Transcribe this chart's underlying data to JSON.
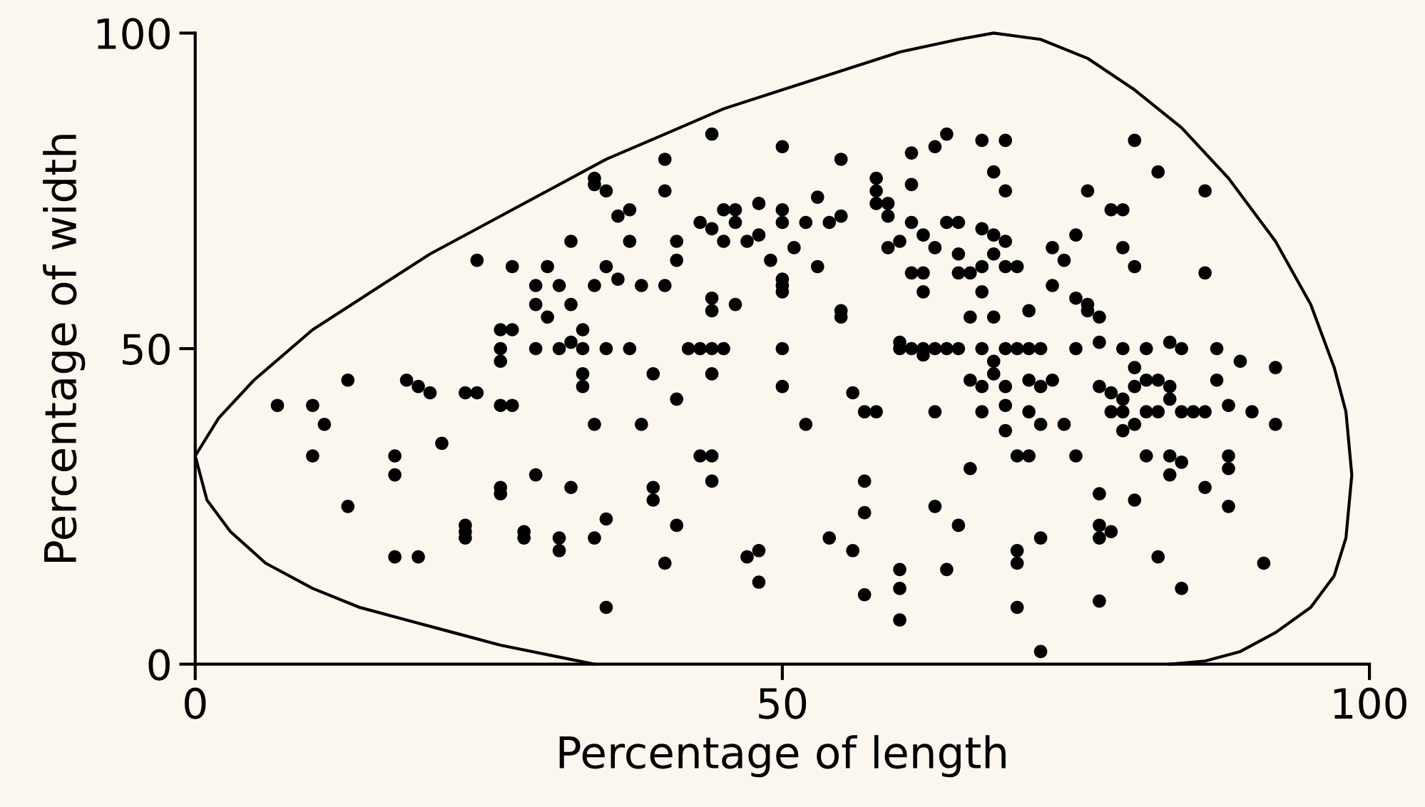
{
  "chart_data": {
    "type": "scatter",
    "xlabel": "Percentage of length",
    "ylabel": "Percentage of width",
    "xlim": [
      0,
      100
    ],
    "ylim": [
      0,
      100
    ],
    "xticks": [
      0,
      50,
      100
    ],
    "yticks": [
      0,
      50,
      100
    ],
    "grid": false,
    "legend": false,
    "series": [
      {
        "color": "#000000",
        "marker": "circle",
        "x": [
          7,
          10,
          10,
          11,
          13,
          13,
          17,
          17,
          17,
          18,
          19,
          19,
          20,
          21,
          23,
          23,
          23,
          24,
          23,
          24,
          26,
          26,
          26,
          26,
          26,
          26,
          27,
          27,
          27,
          28,
          28,
          29,
          29,
          29,
          29,
          30,
          30,
          31,
          31,
          31,
          31,
          32,
          32,
          32,
          32,
          33,
          33,
          33,
          33,
          34,
          34,
          34,
          34,
          34,
          35,
          35,
          35,
          35,
          35,
          36,
          36,
          37,
          37,
          37,
          38,
          38,
          39,
          39,
          39,
          40,
          40,
          40,
          40,
          41,
          41,
          41,
          41,
          42,
          43,
          43,
          43,
          44,
          44,
          44,
          44,
          44,
          44,
          44,
          44,
          45,
          45,
          45,
          46,
          46,
          46,
          47,
          47,
          48,
          48,
          48,
          48,
          49,
          50,
          50,
          50,
          50,
          50,
          50,
          50,
          50,
          51,
          52,
          52,
          53,
          53,
          54,
          54,
          55,
          55,
          55,
          55,
          56,
          56,
          57,
          57,
          57,
          57,
          58,
          58,
          58,
          58,
          59,
          59,
          59,
          60,
          60,
          60,
          60,
          60,
          60,
          61,
          61,
          61,
          61,
          61,
          62,
          62,
          62,
          62,
          62,
          63,
          63,
          63,
          63,
          63,
          64,
          64,
          64,
          64,
          65,
          65,
          65,
          65,
          65,
          66,
          66,
          66,
          66,
          67,
          67,
          67,
          67,
          67,
          67,
          67,
          68,
          68,
          68,
          68,
          68,
          68,
          69,
          69,
          69,
          69,
          69,
          69,
          69,
          69,
          70,
          70,
          70,
          70,
          70,
          70,
          71,
          71,
          71,
          71,
          71,
          72,
          72,
          72,
          72,
          72,
          73,
          73,
          73,
          74,
          74,
          75,
          75,
          75,
          75,
          76,
          76,
          76,
          77,
          77,
          77,
          77,
          77,
          77,
          77,
          78,
          78,
          78,
          78,
          79,
          79,
          79,
          79,
          79,
          79,
          80,
          80,
          80,
          80,
          80,
          80,
          81,
          81,
          81,
          81,
          82,
          82,
          82,
          82,
          83,
          83,
          83,
          83,
          83,
          84,
          84,
          84,
          84,
          85,
          86,
          86,
          86,
          86,
          87,
          87,
          88,
          88,
          88,
          88,
          89,
          90,
          91,
          92,
          92
        ],
        "values": [
          41,
          41,
          33,
          38,
          45,
          25,
          30,
          33,
          17,
          45,
          44,
          17,
          43,
          35,
          43,
          22,
          21,
          43,
          20,
          64,
          53,
          50,
          48,
          41,
          28,
          27,
          63,
          53,
          41,
          21,
          20,
          60,
          57,
          50,
          30,
          63,
          55,
          60,
          50,
          20,
          18,
          67,
          57,
          51,
          28,
          53,
          50,
          46,
          44,
          77,
          76,
          60,
          38,
          20,
          75,
          63,
          50,
          23,
          9,
          71,
          61,
          72,
          67,
          50,
          38,
          60,
          26,
          28,
          46,
          16,
          60,
          75,
          80,
          64,
          67,
          42,
          22,
          50,
          70,
          50,
          33,
          33,
          50,
          84,
          69,
          58,
          56,
          46,
          29,
          72,
          67,
          50,
          70,
          57,
          72,
          67,
          17,
          73,
          68,
          13,
          18,
          64,
          82,
          72,
          70,
          61,
          60,
          59,
          50,
          44,
          66,
          70,
          38,
          63,
          74,
          70,
          20,
          56,
          55,
          80,
          71,
          43,
          18,
          11,
          40,
          24,
          29,
          77,
          75,
          73,
          40,
          71,
          66,
          73,
          50,
          51,
          15,
          7,
          12,
          67,
          70,
          76,
          62,
          50,
          81,
          50,
          62,
          68,
          59,
          49,
          82,
          66,
          50,
          40,
          25,
          84,
          70,
          50,
          15,
          70,
          65,
          62,
          50,
          22,
          55,
          45,
          31,
          62,
          83,
          69,
          63,
          59,
          50,
          44,
          40,
          78,
          65,
          68,
          55,
          48,
          46,
          83,
          75,
          67,
          63,
          50,
          44,
          41,
          37,
          63,
          50,
          16,
          18,
          9,
          33,
          50,
          56,
          40,
          33,
          45,
          50,
          44,
          38,
          20,
          2,
          66,
          45,
          60,
          64,
          38,
          68,
          58,
          50,
          33,
          75,
          57,
          56,
          51,
          55,
          44,
          27,
          22,
          20,
          10,
          72,
          43,
          40,
          21,
          72,
          66,
          50,
          42,
          40,
          37,
          83,
          63,
          47,
          44,
          38,
          26,
          50,
          45,
          40,
          33,
          78,
          45,
          40,
          17,
          51,
          44,
          42,
          33,
          30,
          50,
          40,
          32,
          12,
          40,
          75,
          62,
          40,
          28,
          50,
          45,
          41,
          33,
          31,
          25,
          48,
          40,
          16,
          47,
          38
        ]
      },
      {
        "type": "line",
        "marker": "none",
        "color": "#000000",
        "x": [
          34,
          30,
          26,
          22,
          18,
          14,
          10,
          6,
          3,
          1,
          0,
          2,
          5,
          10,
          15,
          20,
          25,
          30,
          35,
          40,
          45,
          50,
          55,
          60,
          65,
          68,
          72,
          76,
          80,
          84,
          88,
          92,
          95,
          97,
          98,
          98.5,
          98,
          97,
          95,
          92,
          89,
          86,
          83
        ],
        "values": [
          0,
          1.5,
          3,
          5,
          7,
          9,
          12,
          16,
          21,
          26,
          33,
          39,
          45,
          53,
          59,
          65,
          70,
          75,
          80,
          84,
          88,
          91,
          94,
          97,
          99,
          100,
          99,
          96,
          91,
          85,
          77,
          67,
          57,
          47,
          40,
          30,
          20,
          14,
          9,
          5,
          2,
          0.5,
          0
        ]
      }
    ]
  }
}
